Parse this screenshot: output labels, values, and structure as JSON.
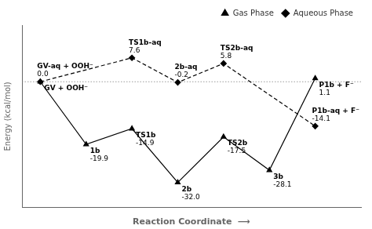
{
  "chart_data": {
    "type": "line",
    "xlabel": "Reaction Coordinate  ⟶",
    "ylabel": "Energy (kcal/mol)",
    "xlim": [
      -0.4,
      7.0
    ],
    "ylim": [
      -40,
      18
    ],
    "tick_labels": false,
    "grid": false,
    "legend": "upper right",
    "data_labels": true,
    "hlines": [
      0.0
    ],
    "series": [
      {
        "name": "Gas Phase",
        "color": "#000000",
        "marker": "triangle",
        "line_style": "solid",
        "x": [
          0,
          1,
          2,
          3,
          4,
          5,
          6
        ],
        "values": [
          0.0,
          -19.9,
          -14.9,
          -32.0,
          -17.5,
          -28.1,
          1.1
        ],
        "value_labels": [
          null,
          "-19.9",
          "-14.9",
          "-32.0",
          "-17.5",
          "-28.1",
          "1.1"
        ],
        "point_labels": [
          "GV + OOH⁻",
          "1b",
          "TS1b",
          "2b",
          "TS2b",
          "3b",
          "P1b + F⁻"
        ]
      },
      {
        "name": "Aqueous Phase",
        "color": "#000000",
        "marker": "diamond",
        "line_style": "dashed",
        "x": [
          0,
          2,
          3,
          4,
          6
        ],
        "values": [
          0.0,
          7.6,
          -0.2,
          5.8,
          -14.1
        ],
        "value_labels": [
          "0.0",
          "7.6",
          "-0.2",
          "5.8",
          "-14.1"
        ],
        "point_labels": [
          "GV-aq + OOH⁻",
          "TS1b-aq",
          "2b-aq",
          "TS2b-aq",
          "P1b-aq + F⁻"
        ]
      }
    ]
  }
}
